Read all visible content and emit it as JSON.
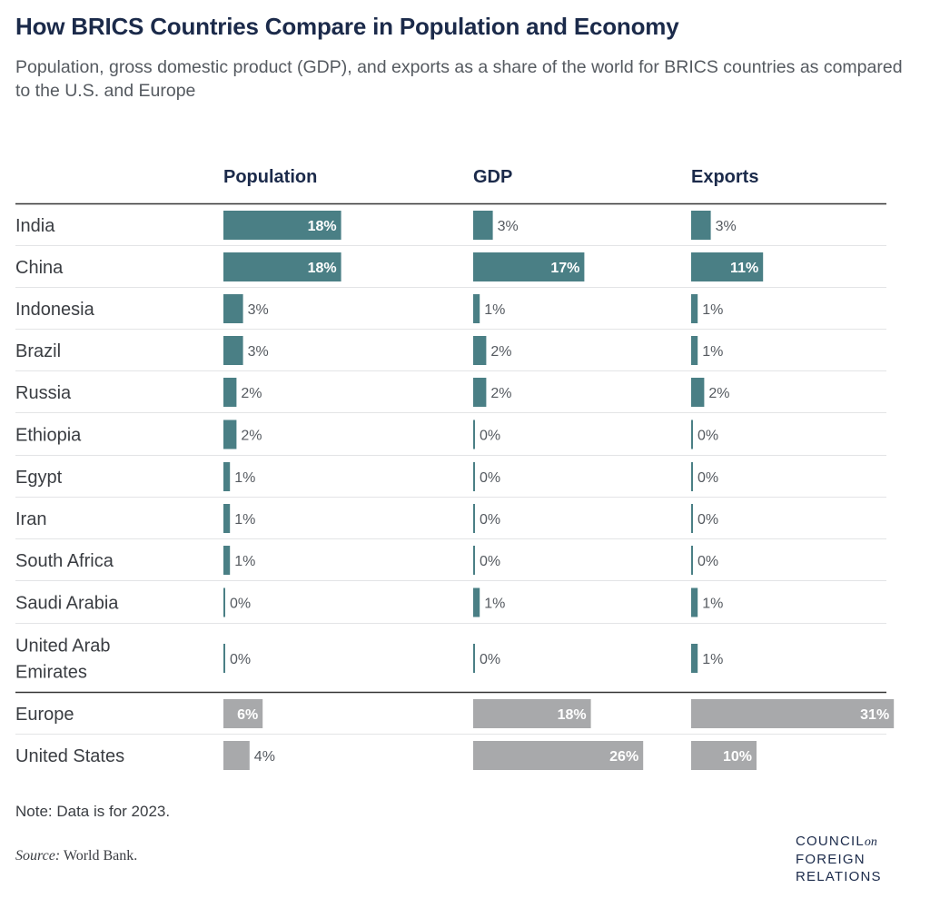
{
  "title": "How BRICS Countries Compare in Population and Economy",
  "subtitle": "Population, gross domestic product (GDP), and exports as a share of the world for BRICS countries as compared to the U.S. and Europe",
  "note": "Note: Data is for 2023.",
  "source": {
    "label": "Source:",
    "text": " World Bank."
  },
  "logo": {
    "line1": "COUNCIL",
    "line1_suffix": "on",
    "line2": "FOREIGN",
    "line3": "RELATIONS"
  },
  "colors": {
    "brics": "#4a7f85",
    "comparison": "#a8a9ab",
    "text": "#3a3d42",
    "title": "#1b2a4a"
  },
  "chart_data": {
    "type": "bar",
    "orientation": "horizontal",
    "columns": [
      "Population",
      "GDP",
      "Exports"
    ],
    "rows": [
      {
        "name": "India",
        "group": "brics",
        "values": [
          18,
          3,
          3
        ],
        "labels": [
          "18%",
          "3%",
          "3%"
        ]
      },
      {
        "name": "China",
        "group": "brics",
        "values": [
          18,
          17,
          11
        ],
        "labels": [
          "18%",
          "17%",
          "11%"
        ]
      },
      {
        "name": "Indonesia",
        "group": "brics",
        "values": [
          3,
          1,
          1
        ],
        "labels": [
          "3%",
          "1%",
          "1%"
        ]
      },
      {
        "name": "Brazil",
        "group": "brics",
        "values": [
          3,
          2,
          1
        ],
        "labels": [
          "3%",
          "2%",
          "1%"
        ]
      },
      {
        "name": "Russia",
        "group": "brics",
        "values": [
          2,
          2,
          2
        ],
        "labels": [
          "2%",
          "2%",
          "2%"
        ]
      },
      {
        "name": "Ethiopia",
        "group": "brics",
        "values": [
          2,
          0,
          0
        ],
        "labels": [
          "2%",
          "0%",
          "0%"
        ]
      },
      {
        "name": "Egypt",
        "group": "brics",
        "values": [
          1,
          0,
          0
        ],
        "labels": [
          "1%",
          "0%",
          "0%"
        ]
      },
      {
        "name": "Iran",
        "group": "brics",
        "values": [
          1,
          0,
          0
        ],
        "labels": [
          "1%",
          "0%",
          "0%"
        ]
      },
      {
        "name": "South Africa",
        "group": "brics",
        "values": [
          1,
          0,
          0
        ],
        "labels": [
          "1%",
          "0%",
          "0%"
        ]
      },
      {
        "name": "Saudi Arabia",
        "group": "brics",
        "values": [
          0,
          1,
          1
        ],
        "labels": [
          "0%",
          "1%",
          "1%"
        ]
      },
      {
        "name": "United Arab Emirates",
        "name_lines": [
          "United Arab",
          "Emirates"
        ],
        "group": "brics",
        "values": [
          0,
          0,
          1
        ],
        "labels": [
          "0%",
          "0%",
          "1%"
        ]
      },
      {
        "name": "Europe",
        "group": "comparison",
        "values": [
          6,
          18,
          31
        ],
        "labels": [
          "6%",
          "18%",
          "31%"
        ]
      },
      {
        "name": "United States",
        "group": "comparison",
        "values": [
          4,
          26,
          10
        ],
        "labels": [
          "4%",
          "26%",
          "10%"
        ]
      }
    ]
  }
}
